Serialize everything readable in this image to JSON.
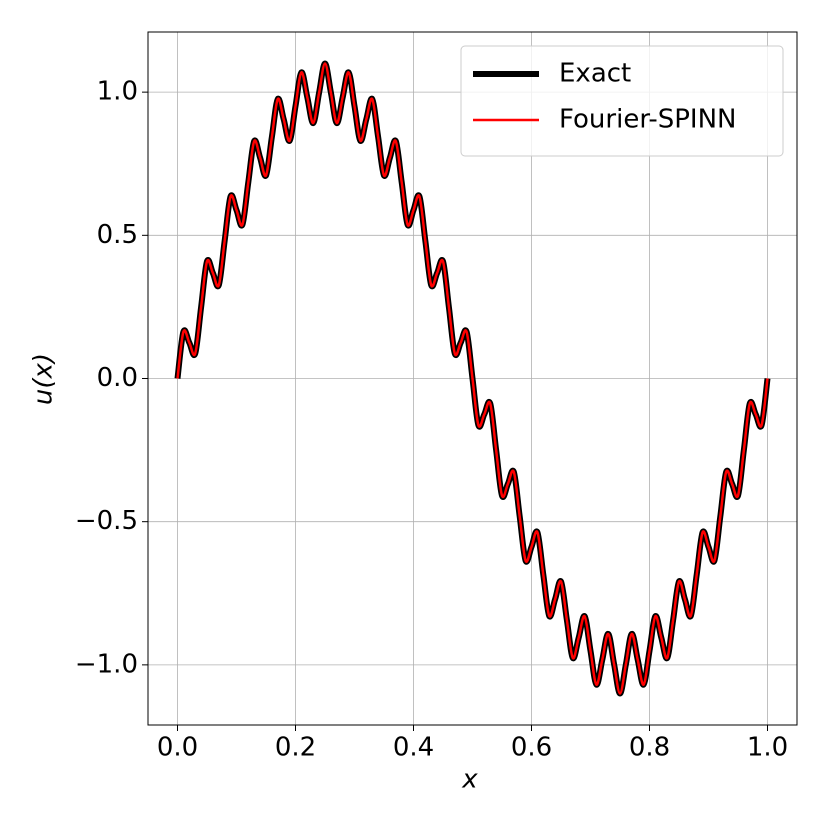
{
  "chart_data": {
    "type": "line",
    "xlabel": "x",
    "ylabel": "u(x)",
    "x": [
      0,
      0.01,
      0.02,
      0.03,
      0.04,
      0.05,
      0.06,
      0.07,
      0.08,
      0.09,
      0.1,
      0.11,
      0.12,
      0.13,
      0.14,
      0.15,
      0.16,
      0.17,
      0.18,
      0.19,
      0.2,
      0.21,
      0.22,
      0.23,
      0.24,
      0.25,
      0.26,
      0.27,
      0.28,
      0.29,
      0.3,
      0.31,
      0.32,
      0.33,
      0.34,
      0.35,
      0.36,
      0.37,
      0.38,
      0.39,
      0.4,
      0.41,
      0.42,
      0.43,
      0.44,
      0.45,
      0.46,
      0.47,
      0.48,
      0.49,
      0.5,
      0.51,
      0.52,
      0.53,
      0.54,
      0.55,
      0.56,
      0.57,
      0.58,
      0.59,
      0.6,
      0.61,
      0.62,
      0.63,
      0.64,
      0.65,
      0.66,
      0.67,
      0.68,
      0.69,
      0.7,
      0.71,
      0.72,
      0.73,
      0.74,
      0.75,
      0.76,
      0.77,
      0.78,
      0.79,
      0.8,
      0.81,
      0.82,
      0.83,
      0.84,
      0.85,
      0.86,
      0.87,
      0.88,
      0.89,
      0.9,
      0.91,
      0.92,
      0.93,
      0.94,
      0.95,
      0.96,
      0.97,
      0.98,
      0.99,
      1
    ],
    "series": [
      {
        "name": "Exact",
        "color": "#000000",
        "values": [
          0,
          0.163,
          0.125,
          0.087,
          0.249,
          0.409,
          0.368,
          0.326,
          0.482,
          0.636,
          0.588,
          0.537,
          0.685,
          0.829,
          0.771,
          0.709,
          0.844,
          0.976,
          0.905,
          0.83,
          0.951,
          1.069,
          0.982,
          0.892,
          0.998,
          1.1,
          0.998,
          0.892,
          0.982,
          1.069,
          0.951,
          0.83,
          0.905,
          0.976,
          0.844,
          0.709,
          0.771,
          0.829,
          0.685,
          0.537,
          0.588,
          0.636,
          0.482,
          0.326,
          0.368,
          0.409,
          0.249,
          0.087,
          0.125,
          0.163,
          0,
          -0.163,
          -0.125,
          -0.087,
          -0.249,
          -0.409,
          -0.368,
          -0.326,
          -0.482,
          -0.636,
          -0.588,
          -0.537,
          -0.685,
          -0.829,
          -0.771,
          -0.709,
          -0.844,
          -0.976,
          -0.905,
          -0.83,
          -0.951,
          -1.069,
          -0.982,
          -0.892,
          -0.998,
          -1.1,
          -0.998,
          -0.892,
          -0.982,
          -1.069,
          -0.951,
          -0.83,
          -0.905,
          -0.976,
          -0.844,
          -0.709,
          -0.771,
          -0.829,
          -0.685,
          -0.537,
          -0.588,
          -0.636,
          -0.482,
          -0.326,
          -0.368,
          -0.409,
          -0.249,
          -0.087,
          -0.125,
          -0.163,
          0
        ]
      },
      {
        "name": "Fourier-SPINN",
        "color": "#ff0000",
        "values": [
          0,
          0.163,
          0.125,
          0.087,
          0.249,
          0.409,
          0.368,
          0.326,
          0.482,
          0.636,
          0.588,
          0.537,
          0.685,
          0.829,
          0.771,
          0.709,
          0.844,
          0.976,
          0.905,
          0.83,
          0.951,
          1.069,
          0.982,
          0.892,
          0.998,
          1.1,
          0.998,
          0.892,
          0.982,
          1.069,
          0.951,
          0.83,
          0.905,
          0.976,
          0.844,
          0.709,
          0.771,
          0.829,
          0.685,
          0.537,
          0.588,
          0.636,
          0.482,
          0.326,
          0.368,
          0.409,
          0.249,
          0.087,
          0.125,
          0.163,
          0,
          -0.163,
          -0.125,
          -0.087,
          -0.249,
          -0.409,
          -0.368,
          -0.326,
          -0.482,
          -0.636,
          -0.588,
          -0.537,
          -0.685,
          -0.829,
          -0.771,
          -0.709,
          -0.844,
          -0.976,
          -0.905,
          -0.83,
          -0.951,
          -1.069,
          -0.982,
          -0.892,
          -0.998,
          -1.1,
          -0.998,
          -0.892,
          -0.982,
          -1.069,
          -0.951,
          -0.83,
          -0.905,
          -0.976,
          -0.844,
          -0.709,
          -0.771,
          -0.829,
          -0.685,
          -0.537,
          -0.588,
          -0.636,
          -0.482,
          -0.326,
          -0.368,
          -0.409,
          -0.249,
          -0.087,
          -0.125,
          -0.163,
          0
        ]
      }
    ],
    "xlim": [
      -0.05,
      1.05
    ],
    "ylim": [
      -1.21,
      1.21
    ],
    "xticks": [
      {
        "value": 0,
        "label": "0.0"
      },
      {
        "value": 0.2,
        "label": "0.2"
      },
      {
        "value": 0.4,
        "label": "0.4"
      },
      {
        "value": 0.6,
        "label": "0.6"
      },
      {
        "value": 0.8,
        "label": "0.8"
      },
      {
        "value": 1,
        "label": "1.0"
      }
    ],
    "yticks": [
      {
        "value": -1,
        "label": "−1.0"
      },
      {
        "value": -0.5,
        "label": "−0.5"
      },
      {
        "value": 0,
        "label": "0.0"
      },
      {
        "value": 0.5,
        "label": "0.5"
      },
      {
        "value": 1,
        "label": "1.0"
      }
    ],
    "grid": true,
    "legend": "upper right"
  }
}
